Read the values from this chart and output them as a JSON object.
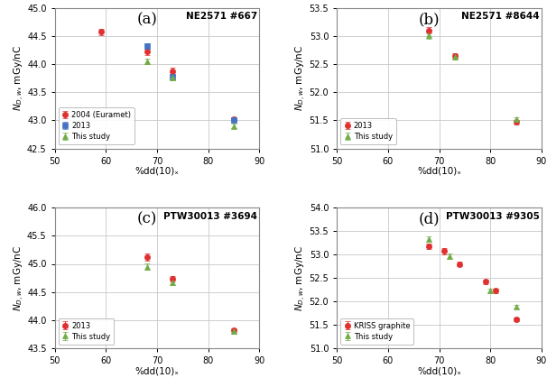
{
  "panel_a": {
    "title": "NE2571 #667",
    "label": "(a)",
    "xlim": [
      50,
      90
    ],
    "ylim": [
      42.5,
      45.0
    ],
    "yticks": [
      42.5,
      43.0,
      43.5,
      44.0,
      44.5,
      45.0
    ],
    "xticks": [
      50,
      60,
      70,
      80,
      90
    ],
    "series": {
      "2004 (Euramet)": {
        "x": [
          59,
          68,
          73,
          85
        ],
        "y": [
          44.57,
          44.22,
          43.87,
          43.02
        ],
        "yerr": [
          0.06,
          0.06,
          0.06,
          0.04
        ],
        "color": "#e03030",
        "marker": "o"
      },
      "2013": {
        "x": [
          68,
          73,
          85
        ],
        "y": [
          44.32,
          43.77,
          43.01
        ],
        "yerr": [
          0.05,
          0.05,
          0.04
        ],
        "color": "#4472c4",
        "marker": "s"
      },
      "This study": {
        "x": [
          68,
          73,
          85
        ],
        "y": [
          44.05,
          43.76,
          42.9
        ],
        "yerr": [
          0.05,
          0.05,
          0.04
        ],
        "color": "#70ad47",
        "marker": "^"
      }
    }
  },
  "panel_b": {
    "title": "NE2571 #8644",
    "label": "(b)",
    "xlim": [
      50,
      90
    ],
    "ylim": [
      51.0,
      53.5
    ],
    "yticks": [
      51.0,
      51.5,
      52.0,
      52.5,
      53.0,
      53.5
    ],
    "xticks": [
      50,
      60,
      70,
      80,
      90
    ],
    "series": {
      "2013": {
        "x": [
          68,
          73,
          85
        ],
        "y": [
          53.1,
          52.65,
          51.47
        ],
        "yerr": [
          0.06,
          0.05,
          0.04
        ],
        "color": "#e03030",
        "marker": "o"
      },
      "This study": {
        "x": [
          68,
          73,
          85
        ],
        "y": [
          53.01,
          52.63,
          51.52
        ],
        "yerr": [
          0.06,
          0.05,
          0.04
        ],
        "color": "#70ad47",
        "marker": "^"
      }
    }
  },
  "panel_c": {
    "title": "PTW30013 #3694",
    "label": "(c)",
    "xlim": [
      50,
      90
    ],
    "ylim": [
      43.5,
      46.0
    ],
    "yticks": [
      43.5,
      44.0,
      44.5,
      45.0,
      45.5,
      46.0
    ],
    "xticks": [
      50,
      60,
      70,
      80,
      90
    ],
    "series": {
      "2013": {
        "x": [
          68,
          73,
          85
        ],
        "y": [
          45.12,
          44.73,
          43.82
        ],
        "yerr": [
          0.06,
          0.05,
          0.04
        ],
        "color": "#e03030",
        "marker": "o"
      },
      "This study": {
        "x": [
          68,
          73,
          85
        ],
        "y": [
          44.95,
          44.67,
          43.8
        ],
        "yerr": [
          0.06,
          0.05,
          0.04
        ],
        "color": "#70ad47",
        "marker": "^"
      }
    }
  },
  "panel_d": {
    "title": "PTW30013 #9305",
    "label": "(d)",
    "xlim": [
      50,
      90
    ],
    "ylim": [
      51.0,
      54.0
    ],
    "yticks": [
      51.0,
      51.5,
      52.0,
      52.5,
      53.0,
      53.5,
      54.0
    ],
    "xticks": [
      50,
      60,
      70,
      80,
      90
    ],
    "series": {
      "KRISS graphite": {
        "x": [
          68,
          71,
          74,
          79,
          81,
          85
        ],
        "y": [
          53.18,
          53.07,
          52.8,
          52.42,
          52.23,
          51.62
        ],
        "yerr": [
          0.06,
          0.06,
          0.05,
          0.05,
          0.05,
          0.04
        ],
        "color": "#e03030",
        "marker": "o"
      },
      "This study": {
        "x": [
          68,
          72,
          80,
          85
        ],
        "y": [
          53.33,
          52.97,
          52.23,
          51.88
        ],
        "yerr": [
          0.06,
          0.06,
          0.05,
          0.04
        ],
        "color": "#70ad47",
        "marker": "^"
      }
    }
  },
  "xlabel": "%dd(10)ₓ",
  "ylabel": "$N_{D,w}$, mGy/nC",
  "bg_color": "#ffffff",
  "grid_color": "#c8c8c8"
}
